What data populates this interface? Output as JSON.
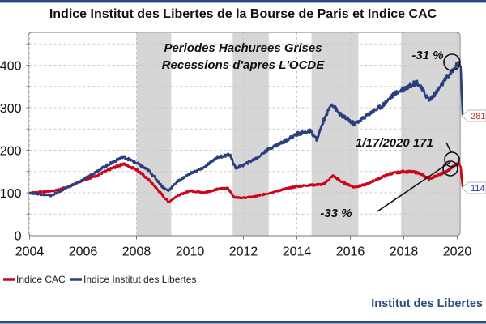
{
  "chart_data": {
    "type": "line",
    "title": "Indice Institut des Libertes de la Bourse de Paris et Indice CAC",
    "xlabel": "",
    "ylabel": "",
    "xlim": [
      2004,
      2020.3
    ],
    "ylim": [
      0,
      470
    ],
    "x_ticks": [
      2004,
      2006,
      2008,
      2010,
      2012,
      2014,
      2016,
      2018,
      2020
    ],
    "y_ticks": [
      0,
      100,
      200,
      300,
      400
    ],
    "grid": true,
    "legend_position": "bottom-left",
    "recessions": [
      [
        2008.0,
        2009.3
      ],
      [
        2011.6,
        2012.95
      ],
      [
        2014.55,
        2016.3
      ],
      [
        2017.9,
        2020.3
      ]
    ],
    "series": [
      {
        "name": "Indice CAC",
        "color": "#d0021b",
        "x": [
          2004,
          2004.5,
          2005,
          2005.5,
          2006,
          2006.5,
          2007,
          2007.5,
          2008,
          2008.5,
          2009.2,
          2009.5,
          2010,
          2010.5,
          2011,
          2011.4,
          2011.65,
          2012,
          2012.5,
          2013,
          2013.5,
          2014,
          2014.5,
          2015,
          2015.35,
          2015.7,
          2016.15,
          2016.6,
          2017,
          2017.5,
          2018,
          2018.5,
          2018.95,
          2019.3,
          2019.6,
          2020.05,
          2020.13,
          2020.2
        ],
        "values": [
          100,
          102,
          106,
          115,
          130,
          140,
          155,
          168,
          155,
          128,
          78,
          92,
          105,
          100,
          108,
          112,
          90,
          88,
          92,
          100,
          108,
          115,
          118,
          120,
          140,
          125,
          113,
          120,
          132,
          145,
          150,
          148,
          133,
          142,
          150,
          171,
          160,
          114
        ]
      },
      {
        "name": "Indice Institut des Libertes",
        "color": "#2b3f7e",
        "x": [
          2004,
          2004.8,
          2005.5,
          2006,
          2006.5,
          2007,
          2007.5,
          2008,
          2008.5,
          2009,
          2009.2,
          2009.5,
          2010,
          2010.5,
          2011,
          2011.5,
          2011.7,
          2012,
          2012.5,
          2013,
          2013.5,
          2014,
          2014.5,
          2014.75,
          2015,
          2015.3,
          2015.6,
          2016.15,
          2016.4,
          2016.8,
          2017.2,
          2017.6,
          2018,
          2018.5,
          2018.95,
          2019.2,
          2019.6,
          2019.9,
          2020.05,
          2020.13,
          2020.2
        ],
        "values": [
          100,
          93,
          115,
          130,
          150,
          168,
          185,
          170,
          150,
          112,
          105,
          125,
          145,
          158,
          183,
          190,
          158,
          165,
          182,
          205,
          220,
          238,
          245,
          225,
          270,
          310,
          285,
          262,
          272,
          290,
          305,
          330,
          345,
          360,
          318,
          335,
          370,
          392,
          408,
          395,
          281
        ]
      }
    ],
    "annotations": {
      "shading_note_line1": "Periodes Hachurees Grises",
      "shading_note_line2": "Recessions d'apres L'OCDE",
      "peak_drop_liberte": "-31 %",
      "peak_label_cac": "1/17/2020 171",
      "drop_cac": "-33 %",
      "last_value_liberte": "281",
      "last_value_cac": "114"
    }
  },
  "brand": "Institut des Libertes"
}
